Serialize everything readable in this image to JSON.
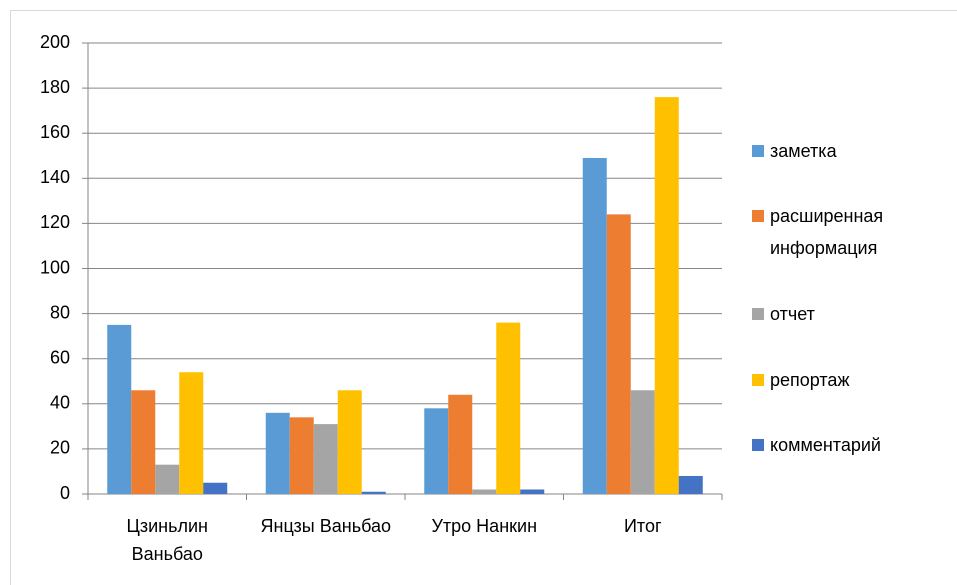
{
  "chart_data": {
    "type": "bar",
    "categories": [
      "Цзиньлин Ваньбао",
      "Янцзы Ваньбао",
      "Утро Нанкин",
      "Итог"
    ],
    "series": [
      {
        "name": "заметка",
        "color": "#5b9bd5",
        "values": [
          75,
          36,
          38,
          149
        ]
      },
      {
        "name": "расширенная информация",
        "color": "#ed7d31",
        "values": [
          46,
          34,
          44,
          124
        ]
      },
      {
        "name": "отчет",
        "color": "#a5a5a5",
        "values": [
          13,
          31,
          2,
          46
        ]
      },
      {
        "name": "репортаж",
        "color": "#ffc000",
        "values": [
          54,
          46,
          76,
          176
        ]
      },
      {
        "name": "комментарий",
        "color": "#4472c4",
        "values": [
          5,
          1,
          2,
          8
        ]
      }
    ],
    "ylim": [
      0,
      200
    ],
    "yticks": [
      0,
      20,
      40,
      60,
      80,
      100,
      120,
      140,
      160,
      180,
      200
    ],
    "grid": true,
    "legend": "right"
  }
}
